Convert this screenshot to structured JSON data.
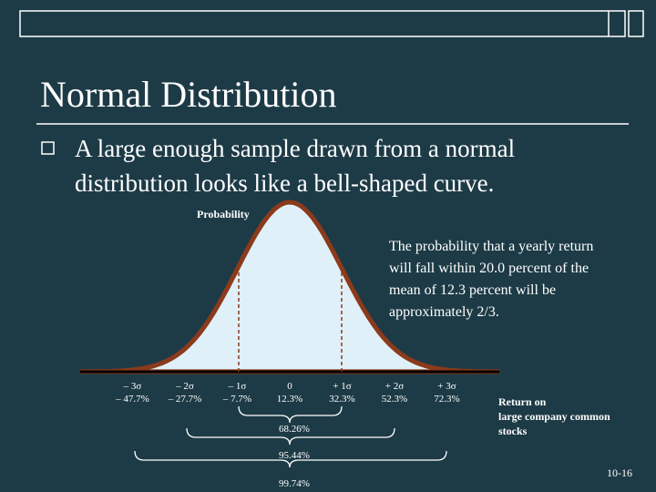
{
  "slide": {
    "title": "Normal Distribution",
    "bullet": [
      "A large enough sample drawn from a normal",
      "distribution looks like a bell-shaped curve."
    ],
    "y_label": "Probability",
    "annotation": [
      "The probability that a yearly return",
      "will fall within 20.0 percent of the",
      "mean of 12.3 percent will be",
      "approximately 2/3."
    ],
    "sigma_labels": [
      "– 3σ",
      "– 2σ",
      "– 1σ",
      "0",
      "+ 1σ",
      "+ 2σ",
      "+ 3σ"
    ],
    "return_labels": [
      "– 47.7%",
      "– 27.7%",
      "– 7.7%",
      "12.3%",
      "32.3%",
      "52.3%",
      "72.3%"
    ],
    "ranges": [
      "68.26%",
      "95.44%",
      "99.74%"
    ],
    "x_label": [
      "Return on",
      "large company common",
      "stocks"
    ],
    "page_number": "10-16"
  }
}
